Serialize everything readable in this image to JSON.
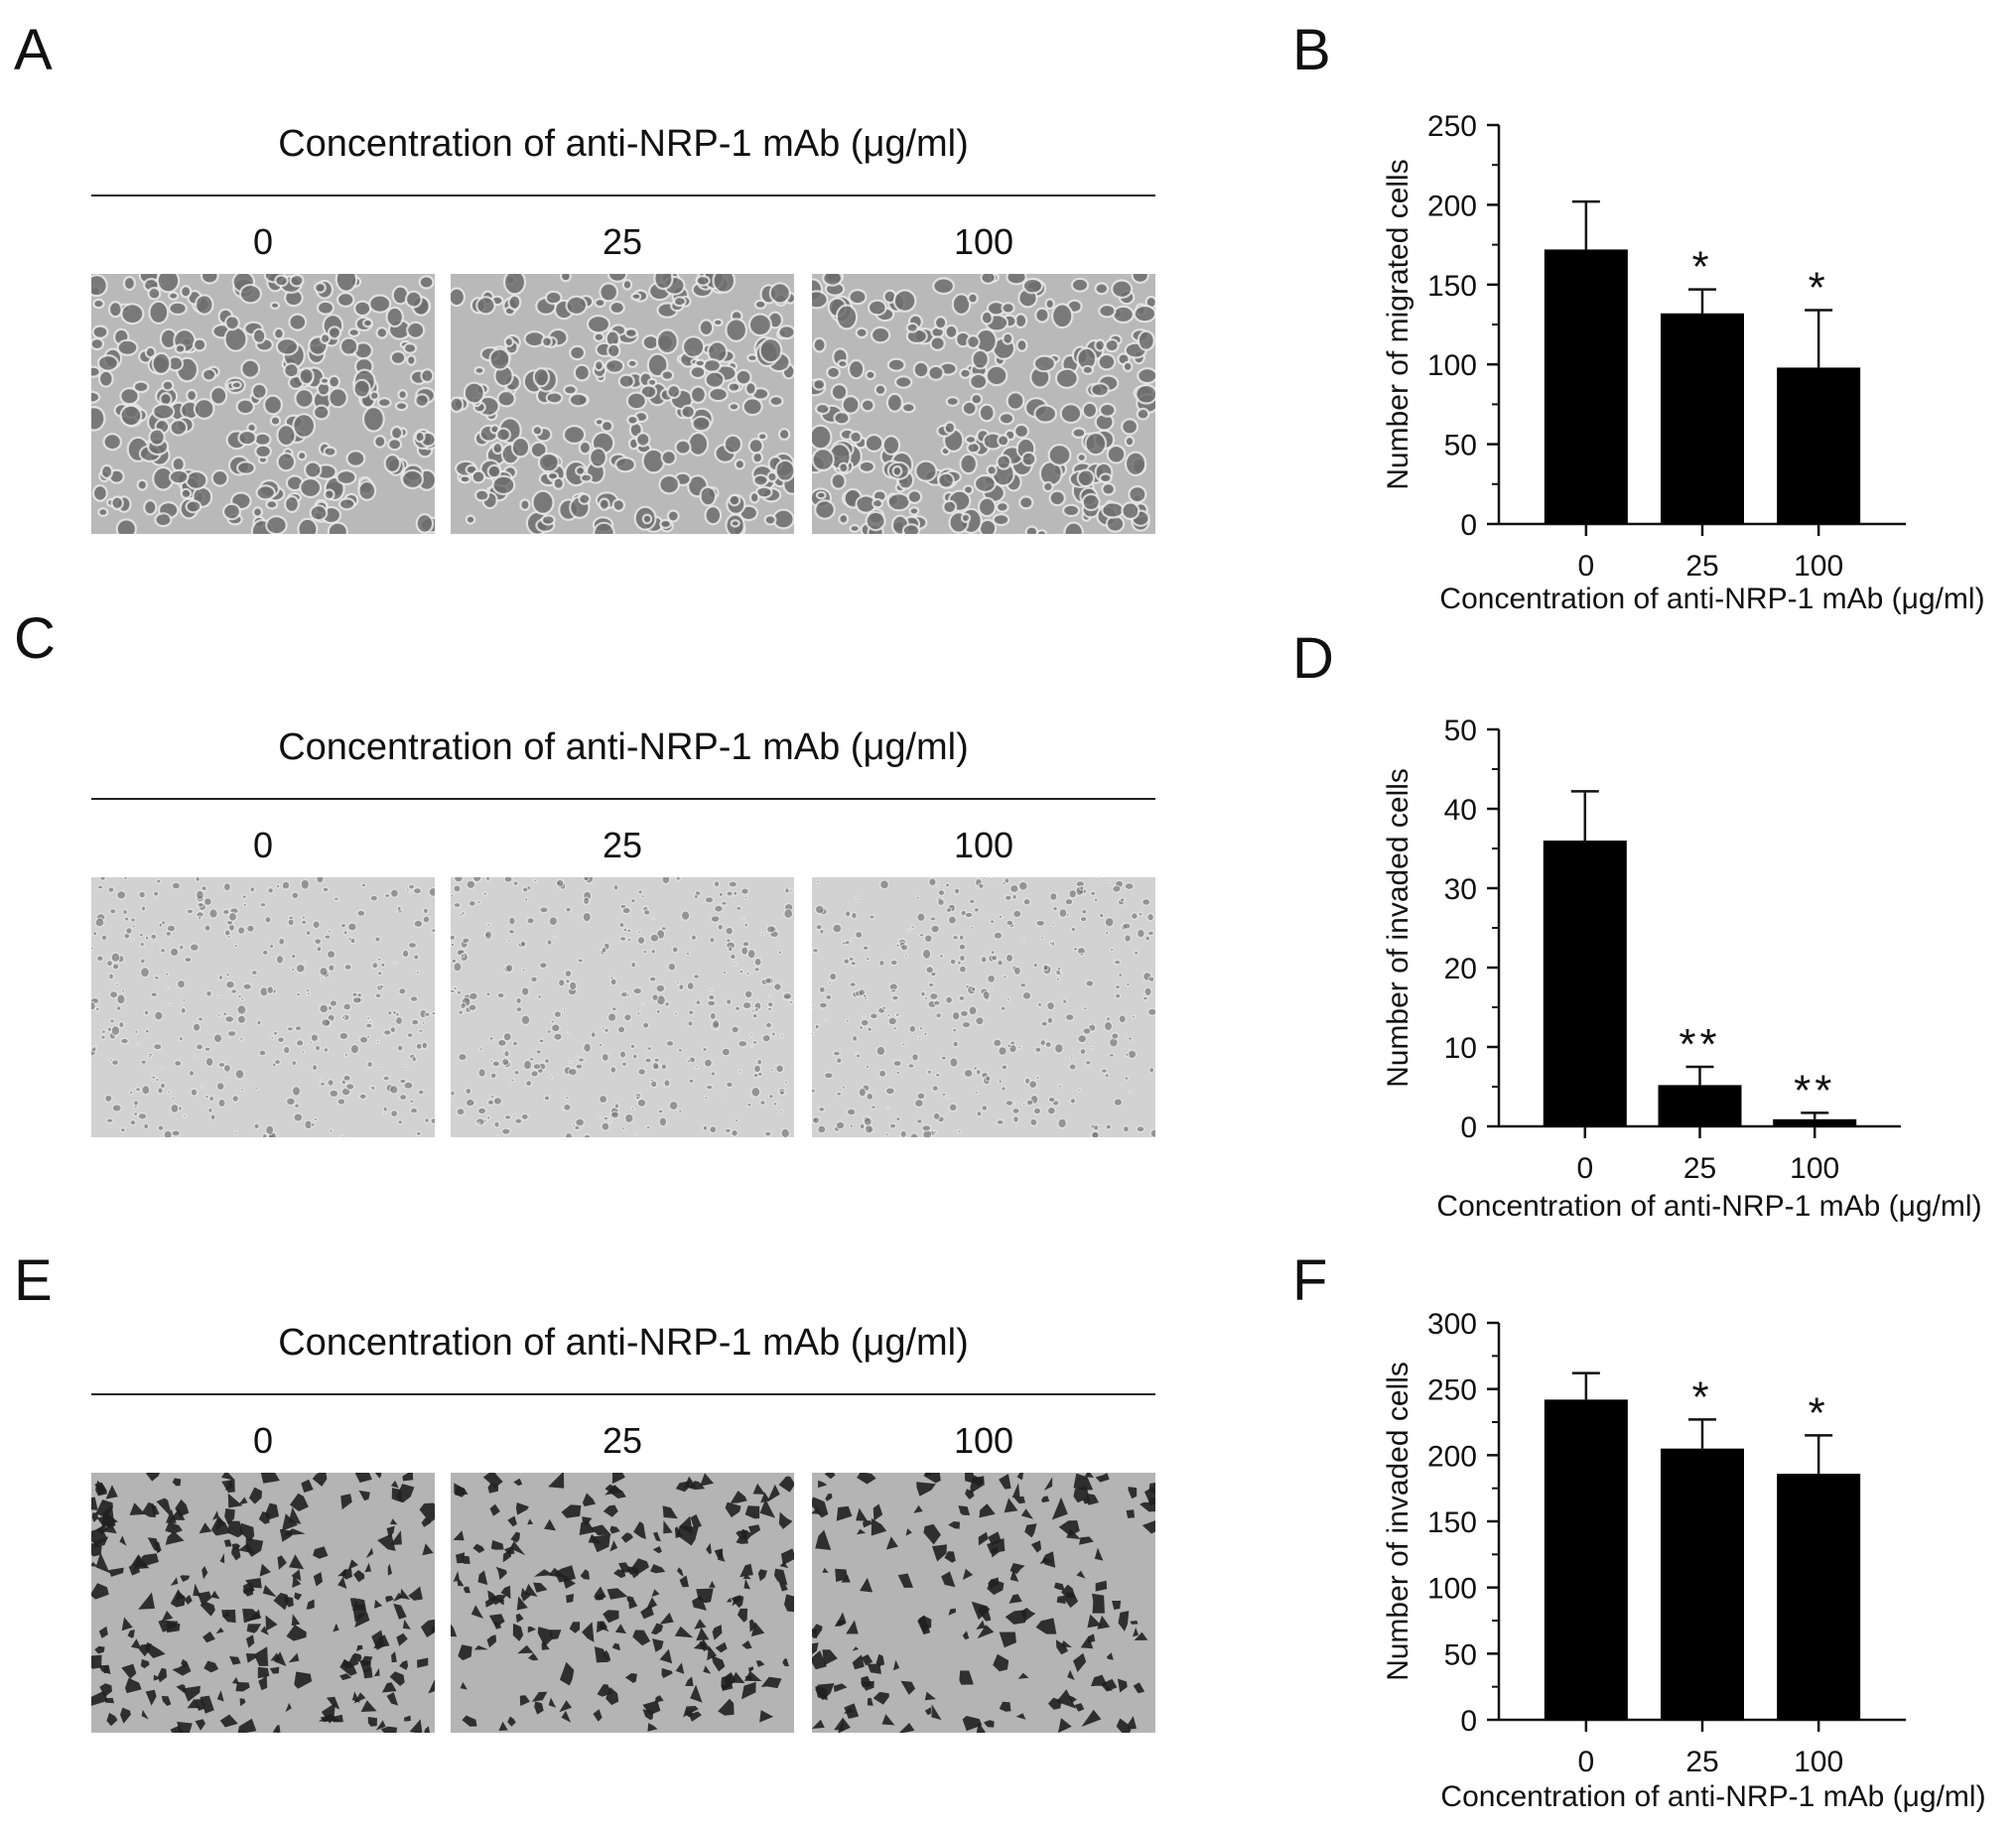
{
  "panel_letters": [
    "A",
    "B",
    "C",
    "D",
    "E",
    "F"
  ],
  "image_rows": [
    {
      "title": "Concentration of anti-NRP-1 mAb (μg/ml)",
      "concentrations": [
        "0",
        "25",
        "100"
      ],
      "style": "phase-contrast migration (dense, bright cell outlines)"
    },
    {
      "title": "Concentration of anti-NRP-1 mAb (μg/ml)",
      "concentrations": [
        "0",
        "25",
        "100"
      ],
      "style": "light matrigel invasion (faint grey texture)"
    },
    {
      "title": "Concentration of anti-NRP-1 mAb (μg/ml)",
      "concentrations": [
        "0",
        "25",
        "100"
      ],
      "style": "crystal-violet stained invading cells (dark cells on grey)"
    }
  ],
  "chart_data": [
    {
      "panel": "B",
      "type": "bar",
      "categories": [
        "0",
        "25",
        "100"
      ],
      "values": [
        172,
        132,
        98
      ],
      "errors": [
        30,
        15,
        36
      ],
      "significance": [
        "",
        "*",
        "*"
      ],
      "xlabel": "Concentration of anti-NRP-1 mAb (μg/ml)",
      "ylabel": "Number of migrated cells",
      "ylim": [
        0,
        250
      ],
      "yticks": [
        0,
        50,
        100,
        150,
        200,
        250
      ],
      "bar_color": "#000000"
    },
    {
      "panel": "D",
      "type": "bar",
      "categories": [
        "0",
        "25",
        "100"
      ],
      "values": [
        36,
        5.2,
        0.9
      ],
      "errors": [
        6.2,
        2.3,
        0.8
      ],
      "significance": [
        "",
        "**",
        "**"
      ],
      "xlabel": "Concentration of anti-NRP-1 mAb (μg/ml)",
      "ylabel": "Number of invaded cells",
      "ylim": [
        0,
        50
      ],
      "yticks": [
        0,
        10,
        20,
        30,
        40,
        50
      ],
      "bar_color": "#000000"
    },
    {
      "panel": "F",
      "type": "bar",
      "categories": [
        "0",
        "25",
        "100"
      ],
      "values": [
        242,
        205,
        186
      ],
      "errors": [
        20,
        22,
        29
      ],
      "significance": [
        "",
        "*",
        "*"
      ],
      "xlabel": "Concentration of anti-NRP-1 mAb (μg/ml)",
      "ylabel": "Number of invaded cells",
      "ylim": [
        0,
        300
      ],
      "yticks": [
        0,
        50,
        100,
        150,
        200,
        250,
        300
      ],
      "bar_color": "#000000"
    }
  ]
}
